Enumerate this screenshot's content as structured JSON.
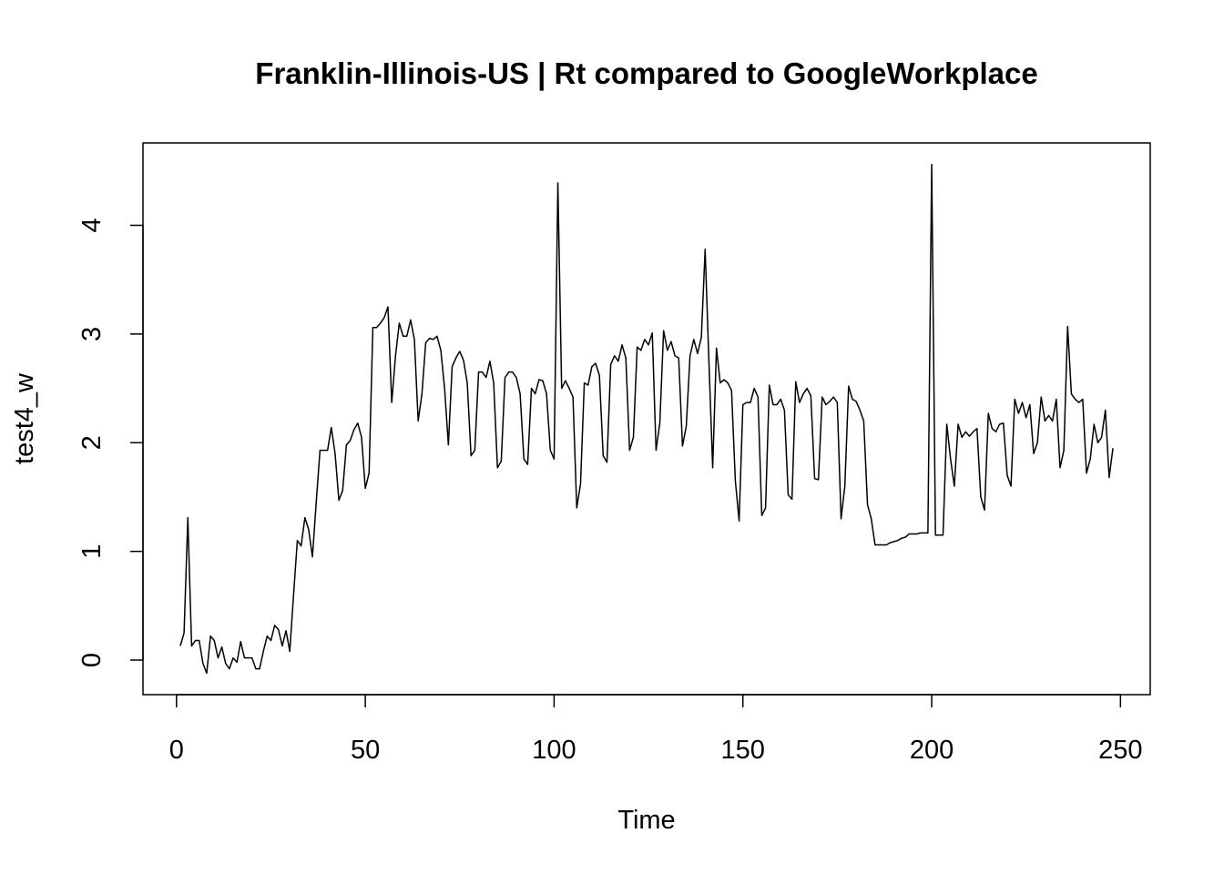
{
  "chart_data": {
    "type": "line",
    "title": "Franklin-Illinois-US | Rt compared to GoogleWorkplace",
    "xlabel": "Time",
    "ylabel": "test4_w",
    "x": [
      1,
      2,
      3,
      4,
      5,
      6,
      7,
      8,
      9,
      10,
      11,
      12,
      13,
      14,
      15,
      16,
      17,
      18,
      19,
      20,
      21,
      22,
      23,
      24,
      25,
      26,
      27,
      28,
      29,
      30,
      31,
      32,
      33,
      34,
      35,
      36,
      37,
      38,
      39,
      40,
      41,
      42,
      43,
      44,
      45,
      46,
      47,
      48,
      49,
      50,
      51,
      52,
      53,
      54,
      55,
      56,
      57,
      58,
      59,
      60,
      61,
      62,
      63,
      64,
      65,
      66,
      67,
      68,
      69,
      70,
      71,
      72,
      73,
      74,
      75,
      76,
      77,
      78,
      79,
      80,
      81,
      82,
      83,
      84,
      85,
      86,
      87,
      88,
      89,
      90,
      91,
      92,
      93,
      94,
      95,
      96,
      97,
      98,
      99,
      100,
      101,
      102,
      103,
      104,
      105,
      106,
      107,
      108,
      109,
      110,
      111,
      112,
      113,
      114,
      115,
      116,
      117,
      118,
      119,
      120,
      121,
      122,
      123,
      124,
      125,
      126,
      127,
      128,
      129,
      130,
      131,
      132,
      133,
      134,
      135,
      136,
      137,
      138,
      139,
      140,
      141,
      142,
      143,
      144,
      145,
      146,
      147,
      148,
      149,
      150,
      151,
      152,
      153,
      154,
      155,
      156,
      157,
      158,
      159,
      160,
      161,
      162,
      163,
      164,
      165,
      166,
      167,
      168,
      169,
      170,
      171,
      172,
      173,
      174,
      175,
      176,
      177,
      178,
      179,
      180,
      181,
      182,
      183,
      184,
      185,
      186,
      187,
      188,
      189,
      190,
      191,
      192,
      193,
      194,
      195,
      196,
      197,
      198,
      199,
      200,
      201,
      202,
      203,
      204,
      205,
      206,
      207,
      208,
      209,
      210,
      211,
      212,
      213,
      214,
      215,
      216,
      217,
      218,
      219,
      220,
      221,
      222,
      223,
      224,
      225,
      226,
      227,
      228,
      229,
      230,
      231,
      232,
      233,
      234,
      235,
      236,
      237,
      238,
      239,
      240,
      241,
      242,
      243,
      244,
      245,
      246,
      247,
      248
    ],
    "series": [
      {
        "name": "test4_w",
        "color": "#000000",
        "values": [
          0.13,
          0.25,
          1.31,
          0.13,
          0.18,
          0.18,
          -0.03,
          -0.12,
          0.22,
          0.18,
          0.02,
          0.12,
          -0.03,
          -0.08,
          0.02,
          -0.02,
          0.17,
          0.02,
          0.02,
          0.02,
          -0.08,
          -0.08,
          0.08,
          0.22,
          0.18,
          0.32,
          0.28,
          0.13,
          0.27,
          0.08,
          0.6,
          1.1,
          1.05,
          1.31,
          1.2,
          0.95,
          1.45,
          1.93,
          1.93,
          1.93,
          2.14,
          1.9,
          1.47,
          1.56,
          1.98,
          2.02,
          2.12,
          2.18,
          2.05,
          1.58,
          1.72,
          3.06,
          3.06,
          3.1,
          3.15,
          3.25,
          2.37,
          2.8,
          3.1,
          2.98,
          2.98,
          3.13,
          2.95,
          2.2,
          2.45,
          2.92,
          2.96,
          2.95,
          2.98,
          2.85,
          2.5,
          1.98,
          2.7,
          2.78,
          2.84,
          2.76,
          2.55,
          1.88,
          1.93,
          2.65,
          2.65,
          2.6,
          2.75,
          2.55,
          1.77,
          1.83,
          2.6,
          2.65,
          2.65,
          2.6,
          2.45,
          1.85,
          1.8,
          2.5,
          2.45,
          2.58,
          2.57,
          2.45,
          1.93,
          1.85,
          4.39,
          2.5,
          2.57,
          2.5,
          2.42,
          1.4,
          1.62,
          2.55,
          2.53,
          2.7,
          2.73,
          2.62,
          1.88,
          1.82,
          2.72,
          2.8,
          2.75,
          2.9,
          2.78,
          1.93,
          2.05,
          2.88,
          2.85,
          2.95,
          2.9,
          3.01,
          1.93,
          2.18,
          3.03,
          2.85,
          2.93,
          2.8,
          2.78,
          1.97,
          2.15,
          2.8,
          2.95,
          2.82,
          2.97,
          3.78,
          2.75,
          1.77,
          2.87,
          2.55,
          2.58,
          2.55,
          2.48,
          1.65,
          1.28,
          2.35,
          2.37,
          2.37,
          2.5,
          2.42,
          1.33,
          1.4,
          2.53,
          2.35,
          2.35,
          2.4,
          2.3,
          1.52,
          1.48,
          2.56,
          2.37,
          2.45,
          2.5,
          2.43,
          1.67,
          1.66,
          2.42,
          2.35,
          2.38,
          2.42,
          2.37,
          1.3,
          1.6,
          2.52,
          2.4,
          2.38,
          2.3,
          2.2,
          1.43,
          1.3,
          1.06,
          1.06,
          1.06,
          1.06,
          1.08,
          1.09,
          1.1,
          1.12,
          1.13,
          1.16,
          1.16,
          1.16,
          1.17,
          1.17,
          1.17,
          4.56,
          1.15,
          1.15,
          1.15,
          2.17,
          1.85,
          1.6,
          2.17,
          2.05,
          2.1,
          2.06,
          2.1,
          2.13,
          1.5,
          1.38,
          2.27,
          2.13,
          2.1,
          2.17,
          2.18,
          1.7,
          1.6,
          2.4,
          2.27,
          2.37,
          2.23,
          2.35,
          1.9,
          2.0,
          2.42,
          2.2,
          2.25,
          2.2,
          2.4,
          1.77,
          1.93,
          3.07,
          2.45,
          2.4,
          2.37,
          2.4,
          1.72,
          1.85,
          2.17,
          2.0,
          2.05,
          2.3,
          1.68,
          1.95
        ]
      }
    ],
    "xlim": [
      -8.88,
      257.88
    ],
    "xticks": [
      0,
      50,
      100,
      150,
      200,
      250
    ],
    "ylim": [
      -0.318,
      4.758
    ],
    "yticks": [
      0,
      1,
      2,
      3,
      4
    ],
    "grid": false
  }
}
